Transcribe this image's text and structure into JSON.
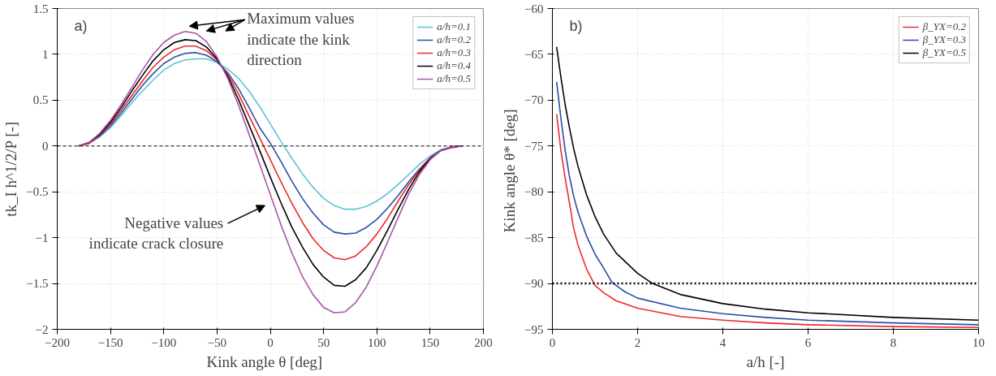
{
  "chart_data": [
    {
      "type": "line",
      "xlabel": "Kink angle  θ   [deg]",
      "ylabel": "tk_I h^1/2/P [-]",
      "xlim": [
        -200,
        200
      ],
      "xticks": [
        -200,
        -150,
        -100,
        -50,
        0,
        50,
        100,
        150,
        200
      ],
      "ylim": [
        -2,
        1.5
      ],
      "yticks": [
        -2,
        -1.5,
        -1,
        -0.5,
        0,
        0.5,
        1,
        1.5
      ],
      "grid": true,
      "legend": "top right",
      "x": [
        -180,
        -170,
        -160,
        -150,
        -140,
        -130,
        -120,
        -110,
        -100,
        -90,
        -80,
        -70,
        -60,
        -50,
        -40,
        -30,
        -20,
        -10,
        0,
        10,
        20,
        30,
        40,
        50,
        60,
        70,
        80,
        90,
        100,
        110,
        120,
        130,
        140,
        150,
        160,
        170,
        180
      ],
      "series": [
        {
          "name": "a/h=0.1",
          "color": "#5bc4d6",
          "values": [
            0,
            0.03,
            0.1,
            0.2,
            0.33,
            0.47,
            0.6,
            0.72,
            0.83,
            0.9,
            0.94,
            0.95,
            0.95,
            0.91,
            0.84,
            0.74,
            0.6,
            0.43,
            0.24,
            0.05,
            -0.13,
            -0.3,
            -0.45,
            -0.57,
            -0.65,
            -0.69,
            -0.69,
            -0.66,
            -0.6,
            -0.52,
            -0.42,
            -0.31,
            -0.2,
            -0.11,
            -0.04,
            -0.01,
            0
          ]
        },
        {
          "name": "a/h=0.2",
          "color": "#2a4ea6",
          "values": [
            0,
            0.03,
            0.11,
            0.22,
            0.36,
            0.51,
            0.66,
            0.79,
            0.9,
            0.97,
            1.01,
            1.02,
            0.99,
            0.92,
            0.8,
            0.63,
            0.42,
            0.2,
            0.03,
            -0.17,
            -0.38,
            -0.57,
            -0.73,
            -0.86,
            -0.94,
            -0.96,
            -0.95,
            -0.89,
            -0.8,
            -0.68,
            -0.54,
            -0.39,
            -0.25,
            -0.13,
            -0.05,
            -0.01,
            0
          ]
        },
        {
          "name": "a/h=0.3",
          "color": "#ee2a2a",
          "values": [
            0,
            0.03,
            0.12,
            0.24,
            0.39,
            0.55,
            0.71,
            0.86,
            0.97,
            1.05,
            1.09,
            1.09,
            1.04,
            0.94,
            0.78,
            0.57,
            0.33,
            0.09,
            -0.15,
            -0.39,
            -0.62,
            -0.83,
            -1.01,
            -1.14,
            -1.22,
            -1.24,
            -1.2,
            -1.1,
            -0.96,
            -0.79,
            -0.6,
            -0.42,
            -0.26,
            -0.13,
            -0.05,
            -0.02,
            0
          ]
        },
        {
          "name": "a/h=0.4",
          "color": "#000000",
          "values": [
            0,
            0.04,
            0.13,
            0.26,
            0.42,
            0.6,
            0.77,
            0.93,
            1.05,
            1.13,
            1.16,
            1.15,
            1.08,
            0.95,
            0.76,
            0.51,
            0.23,
            -0.05,
            -0.34,
            -0.62,
            -0.88,
            -1.1,
            -1.29,
            -1.43,
            -1.52,
            -1.53,
            -1.46,
            -1.33,
            -1.14,
            -0.92,
            -0.69,
            -0.47,
            -0.28,
            -0.14,
            -0.05,
            -0.01,
            0
          ]
        },
        {
          "name": "a/h=0.5",
          "color": "#a855a8",
          "values": [
            0,
            0.04,
            0.14,
            0.28,
            0.45,
            0.64,
            0.83,
            1.0,
            1.13,
            1.21,
            1.25,
            1.23,
            1.14,
            0.97,
            0.74,
            0.45,
            0.13,
            -0.2,
            -0.53,
            -0.86,
            -1.16,
            -1.42,
            -1.62,
            -1.76,
            -1.82,
            -1.81,
            -1.71,
            -1.54,
            -1.31,
            -1.05,
            -0.78,
            -0.52,
            -0.31,
            -0.15,
            -0.05,
            -0.01,
            0
          ]
        }
      ],
      "ref_lines": [
        {
          "axis": "y",
          "value": 0,
          "color": "#000000",
          "line_style": "dashed"
        }
      ],
      "annotations": [
        "a)",
        "Maximum values\nindicate the kink\ndirection",
        "Negative values\nindicate crack closure"
      ]
    },
    {
      "type": "line",
      "xlabel": "a/h [-]",
      "ylabel": "Kink angle  θ* [deg]",
      "xlim": [
        0,
        10
      ],
      "xticks": [
        0,
        2,
        4,
        6,
        8,
        10
      ],
      "ylim": [
        -95,
        -60
      ],
      "yticks": [
        -95,
        -90,
        -85,
        -80,
        -75,
        -70,
        -65,
        -60
      ],
      "grid": true,
      "legend": "top right",
      "series": [
        {
          "name": "β_YX=0.2",
          "color": "#ee2a2a",
          "x": [
            0.1,
            0.2,
            0.3,
            0.4,
            0.5,
            0.6,
            0.8,
            1,
            1.2,
            1.5,
            2,
            3,
            4,
            5,
            6,
            8,
            10
          ],
          "values": [
            -71.5,
            -75.5,
            -78.5,
            -81.2,
            -84,
            -85.8,
            -88.4,
            -90.2,
            -91,
            -91.9,
            -92.7,
            -93.6,
            -94,
            -94.3,
            -94.5,
            -94.7,
            -94.8
          ]
        },
        {
          "name": "β_YX=0.3",
          "color": "#2a4ea6",
          "x": [
            0.1,
            0.2,
            0.3,
            0.4,
            0.5,
            0.6,
            0.8,
            1,
            1.2,
            1.4,
            1.7,
            2,
            3,
            4,
            5,
            6,
            8,
            10
          ],
          "values": [
            -68,
            -72,
            -75.5,
            -78.3,
            -80.5,
            -82.2,
            -84.8,
            -86.8,
            -88.3,
            -89.9,
            -90.9,
            -91.6,
            -92.7,
            -93.3,
            -93.7,
            -94,
            -94.3,
            -94.5
          ]
        },
        {
          "name": "β_YX=0.5",
          "color": "#000000",
          "x": [
            0.1,
            0.2,
            0.3,
            0.4,
            0.5,
            0.6,
            0.8,
            1,
            1.2,
            1.5,
            2,
            2.35,
            3,
            4,
            5,
            6,
            8,
            10
          ],
          "values": [
            -64.2,
            -67.5,
            -70.5,
            -73,
            -75.3,
            -77.2,
            -80.3,
            -82.7,
            -84.6,
            -86.7,
            -88.9,
            -90,
            -91.2,
            -92.2,
            -92.8,
            -93.2,
            -93.7,
            -94
          ]
        }
      ],
      "ref_lines": [
        {
          "axis": "y",
          "value": -90,
          "color": "#000000",
          "line_style": "dotted"
        }
      ],
      "annotations": [
        "b)"
      ]
    }
  ]
}
